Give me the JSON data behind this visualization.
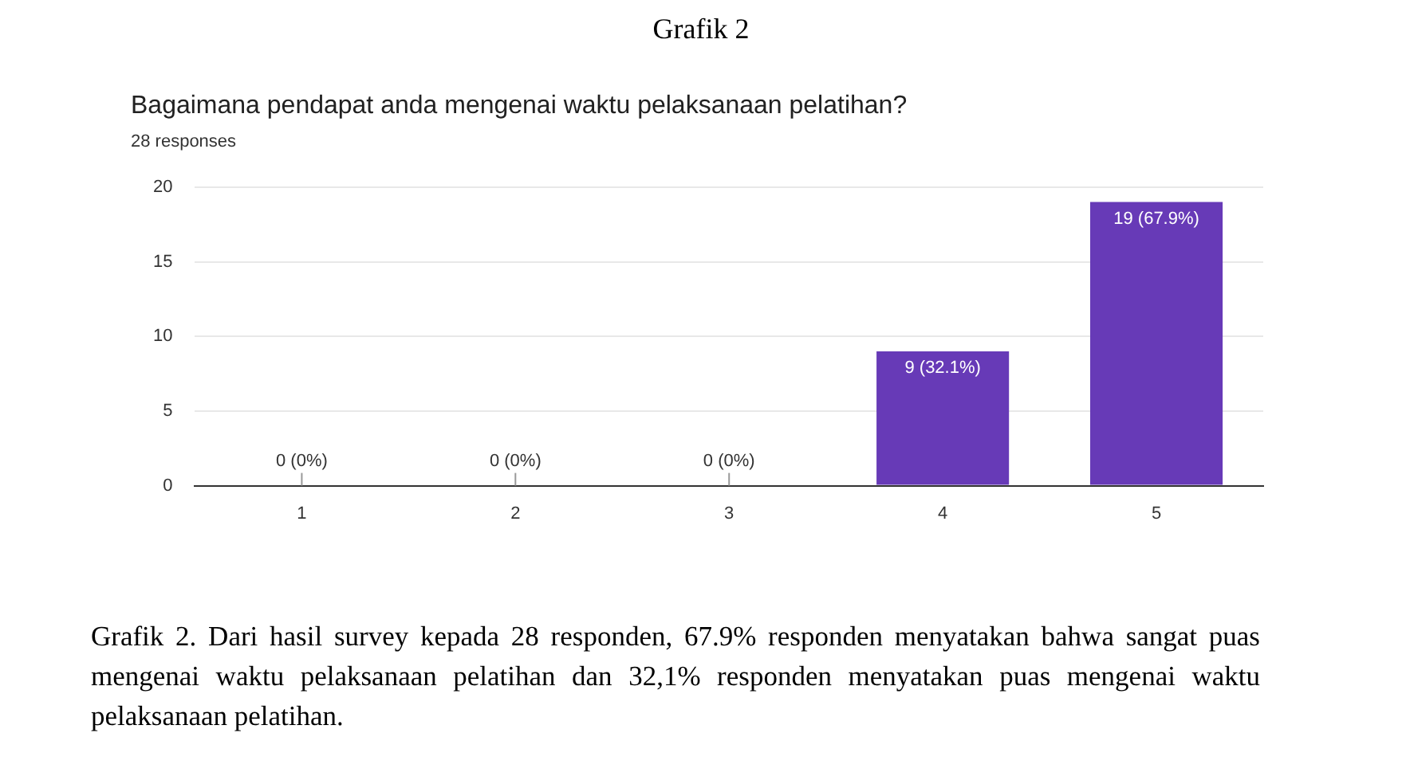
{
  "chart_data": {
    "type": "bar",
    "title": "Bagaimana pendapat anda mengenai waktu pelaksanaan pelatihan?",
    "subtitle": "28 responses",
    "categories": [
      "1",
      "2",
      "3",
      "4",
      "5"
    ],
    "values": [
      0,
      0,
      0,
      9,
      19
    ],
    "value_labels": [
      "0 (0%)",
      "0 (0%)",
      "0 (0%)",
      "9 (32.1%)",
      "19 (67.9%)"
    ],
    "color": "#673ab7",
    "ylim": [
      0,
      20
    ],
    "yticks": [
      0,
      5,
      10,
      15,
      20
    ],
    "grid": "y",
    "legend": false,
    "annotations": [
      "Grafik 2",
      "Grafik 2. Dari hasil survey kepada 28 responden, 67.9% responden menyatakan bahwa sangat puas mengenai waktu pelaksanaan pelatihan dan 32,1% responden menyatakan puas mengenai waktu pelaksanaan pelatihan."
    ]
  }
}
